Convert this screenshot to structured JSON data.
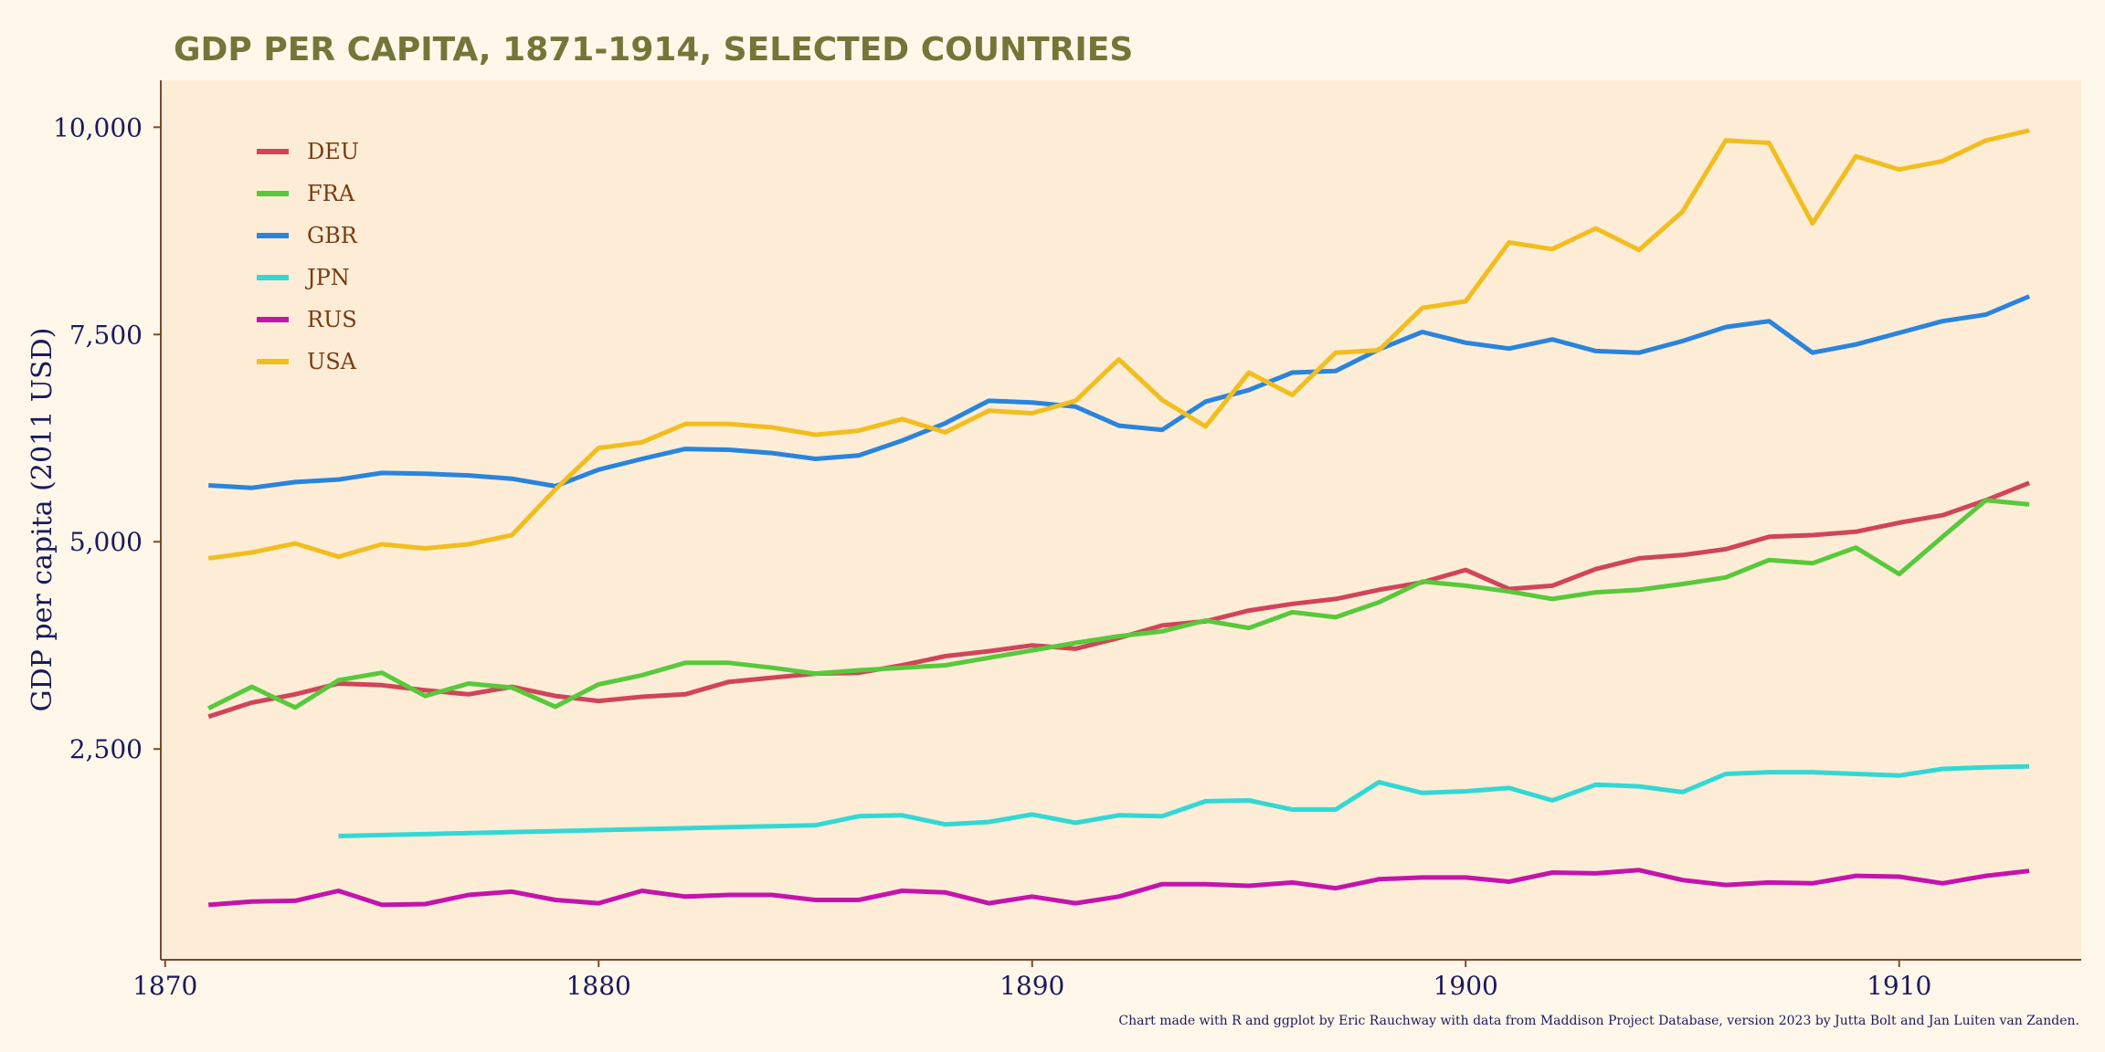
{
  "chart_data": {
    "type": "line",
    "title": "GDP PER CAPITA, 1871-1914, SELECTED COUNTRIES",
    "ylabel": "GDP per capita (2011 USD)",
    "xlabel": "",
    "caption": "Chart made with R and ggplot by Eric Rauchway with data from Maddison Project Database, version 2023 by Jutta Bolt and Jan Luiten van Zanden.",
    "xlim": [
      1869.9,
      1914.2
    ],
    "ylim": [
      -42,
      10565
    ],
    "x_ticks": [
      1870,
      1880,
      1890,
      1900,
      1910
    ],
    "x_tick_labels": [
      "1870",
      "1880",
      "1890",
      "1900",
      "1910"
    ],
    "y_ticks": [
      2500,
      5000,
      7500,
      10000
    ],
    "y_tick_labels": [
      "2,500",
      "5,000",
      "7,500",
      "10,000"
    ],
    "grid": false,
    "legend_position": "top-left",
    "colors": {
      "background": "#fff8ea",
      "panel": "#feedd6",
      "title": "#757538",
      "axis_text": "#1a1a5e",
      "axis_line": "#7a4a2a",
      "legend_text": "#7a3a10"
    },
    "series": [
      {
        "name": "DEU",
        "color": "#d1445a",
        "x": [
          1871,
          1872,
          1873,
          1874,
          1875,
          1876,
          1877,
          1878,
          1879,
          1880,
          1881,
          1882,
          1883,
          1884,
          1885,
          1886,
          1887,
          1888,
          1889,
          1890,
          1891,
          1892,
          1893,
          1894,
          1895,
          1896,
          1897,
          1898,
          1899,
          1900,
          1901,
          1902,
          1903,
          1904,
          1905,
          1906,
          1907,
          1908,
          1909,
          1910,
          1911,
          1912,
          1913
        ],
        "values": [
          2890,
          3060,
          3160,
          3290,
          3270,
          3210,
          3160,
          3250,
          3140,
          3080,
          3130,
          3160,
          3310,
          3360,
          3410,
          3420,
          3510,
          3620,
          3680,
          3750,
          3710,
          3840,
          3990,
          4040,
          4170,
          4250,
          4310,
          4420,
          4510,
          4660,
          4430,
          4470,
          4670,
          4800,
          4840,
          4910,
          5060,
          5080,
          5120,
          5230,
          5320,
          5500,
          5710
        ]
      },
      {
        "name": "FRA",
        "color": "#58c93b",
        "x": [
          1871,
          1872,
          1873,
          1874,
          1875,
          1876,
          1877,
          1878,
          1879,
          1880,
          1881,
          1882,
          1883,
          1884,
          1885,
          1886,
          1887,
          1888,
          1889,
          1890,
          1891,
          1892,
          1893,
          1894,
          1895,
          1896,
          1897,
          1898,
          1899,
          1900,
          1901,
          1902,
          1903,
          1904,
          1905,
          1906,
          1907,
          1908,
          1909,
          1910,
          1911,
          1912,
          1913
        ],
        "values": [
          2990,
          3250,
          3000,
          3330,
          3420,
          3140,
          3290,
          3240,
          3010,
          3280,
          3390,
          3540,
          3540,
          3480,
          3410,
          3450,
          3480,
          3510,
          3600,
          3690,
          3780,
          3860,
          3920,
          4050,
          3960,
          4150,
          4090,
          4270,
          4520,
          4470,
          4400,
          4310,
          4390,
          4420,
          4490,
          4570,
          4780,
          4740,
          4930,
          4610,
          5060,
          5500,
          5450
        ]
      },
      {
        "name": "GBR",
        "color": "#2a84dc",
        "x": [
          1871,
          1872,
          1873,
          1874,
          1875,
          1876,
          1877,
          1878,
          1879,
          1880,
          1881,
          1882,
          1883,
          1884,
          1885,
          1886,
          1887,
          1888,
          1889,
          1890,
          1891,
          1892,
          1893,
          1894,
          1895,
          1896,
          1897,
          1898,
          1899,
          1900,
          1901,
          1902,
          1903,
          1904,
          1905,
          1906,
          1907,
          1908,
          1909,
          1910,
          1911,
          1912,
          1913
        ],
        "values": [
          5680,
          5650,
          5720,
          5750,
          5830,
          5820,
          5800,
          5760,
          5670,
          5870,
          6000,
          6120,
          6110,
          6070,
          6000,
          6040,
          6220,
          6430,
          6700,
          6680,
          6630,
          6400,
          6350,
          6690,
          6830,
          7040,
          7060,
          7320,
          7530,
          7400,
          7330,
          7440,
          7300,
          7280,
          7420,
          7590,
          7660,
          7280,
          7380,
          7520,
          7660,
          7740,
          7960
        ]
      },
      {
        "name": "JPN",
        "color": "#33d8d4",
        "x": [
          1874,
          1885,
          1886,
          1887,
          1888,
          1889,
          1890,
          1891,
          1892,
          1893,
          1894,
          1895,
          1896,
          1897,
          1898,
          1899,
          1900,
          1901,
          1902,
          1903,
          1904,
          1905,
          1906,
          1907,
          1908,
          1909,
          1910,
          1911,
          1912,
          1913
        ],
        "values": [
          1450,
          1580,
          1690,
          1700,
          1590,
          1620,
          1710,
          1610,
          1700,
          1690,
          1870,
          1880,
          1770,
          1770,
          2100,
          1970,
          1990,
          2030,
          1880,
          2070,
          2050,
          1980,
          2200,
          2220,
          2220,
          2200,
          2180,
          2260,
          2280,
          2290
        ]
      },
      {
        "name": "RUS",
        "color": "#c414ad",
        "x": [
          1871,
          1872,
          1873,
          1874,
          1875,
          1876,
          1877,
          1878,
          1879,
          1880,
          1881,
          1882,
          1883,
          1884,
          1885,
          1886,
          1887,
          1888,
          1889,
          1890,
          1891,
          1892,
          1893,
          1894,
          1895,
          1896,
          1897,
          1898,
          1899,
          1900,
          1901,
          1902,
          1903,
          1904,
          1905,
          1906,
          1907,
          1908,
          1909,
          1910,
          1911,
          1912,
          1913
        ],
        "values": [
          620,
          660,
          670,
          790,
          620,
          630,
          740,
          780,
          680,
          640,
          790,
          720,
          740,
          740,
          680,
          680,
          790,
          770,
          640,
          720,
          640,
          720,
          870,
          870,
          850,
          890,
          820,
          930,
          950,
          950,
          900,
          1010,
          1000,
          1040,
          920,
          860,
          890,
          880,
          970,
          960,
          880,
          970,
          1030
        ]
      },
      {
        "name": "USA",
        "color": "#f2bd1e",
        "x": [
          1871,
          1872,
          1873,
          1874,
          1875,
          1876,
          1877,
          1878,
          1879,
          1880,
          1881,
          1882,
          1883,
          1884,
          1885,
          1886,
          1887,
          1888,
          1889,
          1890,
          1891,
          1892,
          1893,
          1894,
          1895,
          1896,
          1897,
          1898,
          1899,
          1900,
          1901,
          1902,
          1903,
          1904,
          1905,
          1906,
          1907,
          1908,
          1909,
          1910,
          1911,
          1912,
          1913
        ],
        "values": [
          4800,
          4870,
          4980,
          4820,
          4970,
          4920,
          4970,
          5080,
          5630,
          6130,
          6200,
          6420,
          6420,
          6380,
          6290,
          6340,
          6480,
          6320,
          6580,
          6550,
          6700,
          7200,
          6710,
          6390,
          7040,
          6770,
          7280,
          7310,
          7820,
          7900,
          8610,
          8530,
          8780,
          8520,
          8980,
          9840,
          9810,
          8840,
          9650,
          9490,
          9590,
          9840,
          9960
        ]
      }
    ]
  }
}
